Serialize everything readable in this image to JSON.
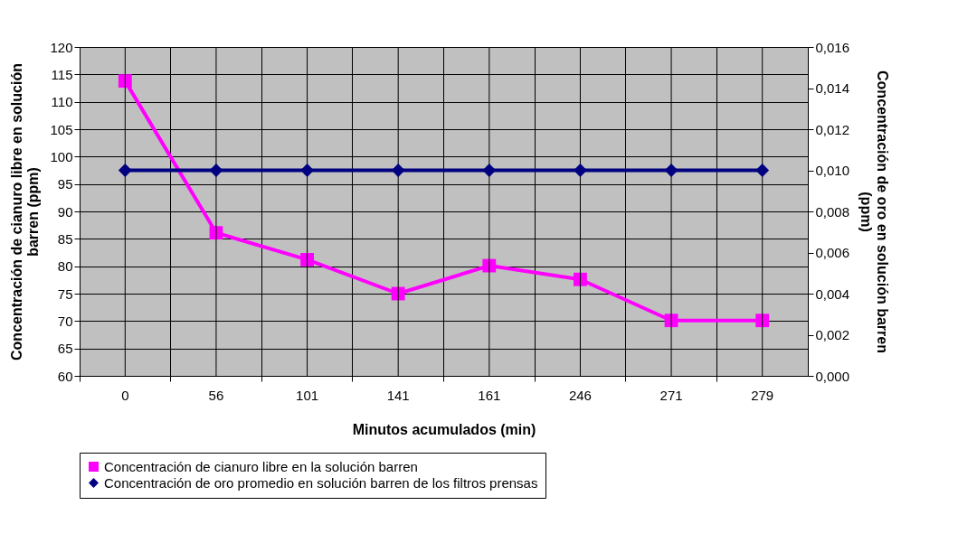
{
  "chart_data": {
    "type": "line",
    "xlabel": "Minutos acumulados (min)",
    "ylabel": "Concentración de cianuro libre en solución barren  (ppm)",
    "y2label": "Concentración de oro en solución barren (ppm)",
    "categories": [
      "0",
      "56",
      "101",
      "141",
      "161",
      "246",
      "271",
      "279"
    ],
    "series": [
      {
        "name": "Concentración de cianuro libre en la solución barren",
        "color": "#ff00ff",
        "marker": "square",
        "values": [
          113.8,
          86.1,
          81.2,
          75,
          80.1,
          77.6,
          70.1,
          70.1
        ]
      },
      {
        "name": "Concentración de oro promedio en solución barren de los filtros prensas",
        "color": "#000080",
        "marker": "diamond",
        "axis": "y2",
        "values": [
          0.01,
          0.01,
          0.01,
          0.01,
          0.01,
          0.01,
          0.01,
          0.01
        ]
      }
    ],
    "ylim": [
      60,
      120
    ],
    "yticks": [
      60,
      65,
      70,
      75,
      80,
      85,
      90,
      95,
      100,
      105,
      110,
      115,
      120
    ],
    "y2lim": [
      0,
      0.016
    ],
    "y2ticks": [
      {
        "value": 0,
        "label": "0,000"
      },
      {
        "value": 0.002,
        "label": "0,002"
      },
      {
        "value": 0.004,
        "label": "0,004"
      },
      {
        "value": 0.006,
        "label": "0,006"
      },
      {
        "value": 0.008,
        "label": "0,008"
      },
      {
        "value": 0.01,
        "label": "0,010"
      },
      {
        "value": 0.012,
        "label": "0,012"
      },
      {
        "value": 0.014,
        "label": "0,014"
      },
      {
        "value": 0.016,
        "label": "0,016"
      }
    ],
    "grid": true,
    "legend": "bottom",
    "line_style": "solid"
  }
}
